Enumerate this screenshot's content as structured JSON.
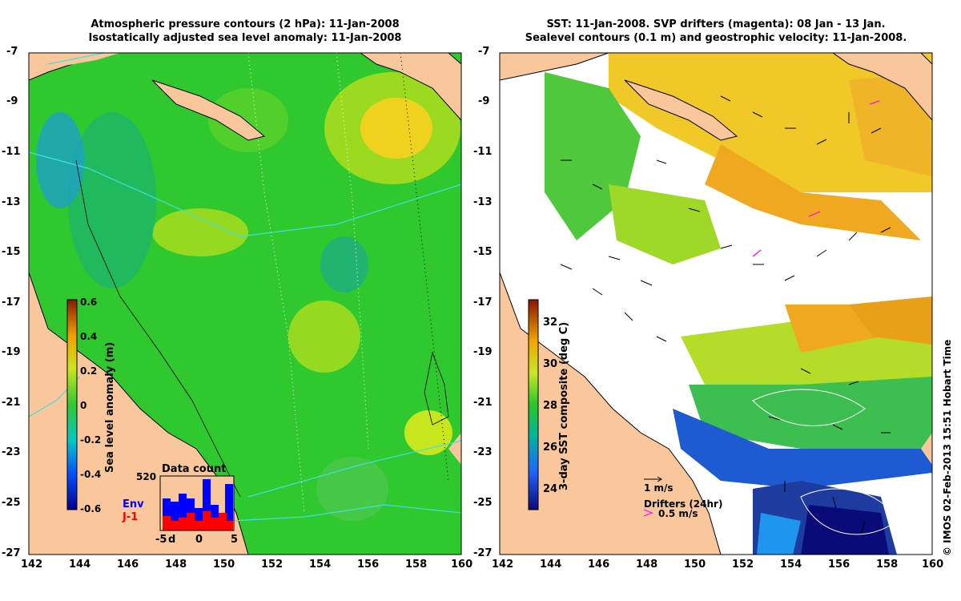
{
  "left_panel": {
    "title_line1": "Atmospheric pressure contours (2 hPa): 11-Jan-2008",
    "title_line2": "Isostatically adjusted sea level anomaly: 11-Jan-2008",
    "colorbar_label": "Sea level anomaly (m)",
    "colorbar_ticks": [
      "0.6",
      "0.4",
      "0.2",
      "0",
      "-0.2",
      "-0.4",
      "-0.6"
    ],
    "inset_title": "Data count",
    "inset_max": "520",
    "inset_env": "Env",
    "inset_j1": "J-1",
    "inset_ticks": [
      "-5",
      "d",
      "0",
      "5"
    ],
    "env_color": "#0000ff",
    "j1_color": "#ff0000"
  },
  "right_panel": {
    "title_line1": "SST: 11-Jan-2008. SVP drifters (magenta): 08 Jan - 13 Jan.",
    "title_line2": "Sealevel contours (0.1 m) and geostrophic velocity: 11-Jan-2008.",
    "colorbar_label": "3-day SST composite (deg C)",
    "colorbar_ticks": [
      "32",
      "30",
      "28",
      "26",
      "24"
    ],
    "scale_label": "1 m/s",
    "drifters_label": "Drifters (24hr)",
    "drifter_scale": "0.5 m/s",
    "drifter_color": "#ff00ff"
  },
  "axes": {
    "x_ticks": [
      "142",
      "144",
      "146",
      "148",
      "150",
      "152",
      "154",
      "156",
      "158",
      "160"
    ],
    "y_ticks": [
      "-7",
      "-9",
      "-11",
      "-13",
      "-15",
      "-17",
      "-19",
      "-21",
      "-23",
      "-25",
      "-27"
    ]
  },
  "credit": "© IMOS 02-Feb-2013 15:51 Hobart Time",
  "colors": {
    "land": "#f9c79b",
    "sea_mid": "#2ec82e",
    "warm": "#f0d21e",
    "cloud": "#ffffff"
  }
}
